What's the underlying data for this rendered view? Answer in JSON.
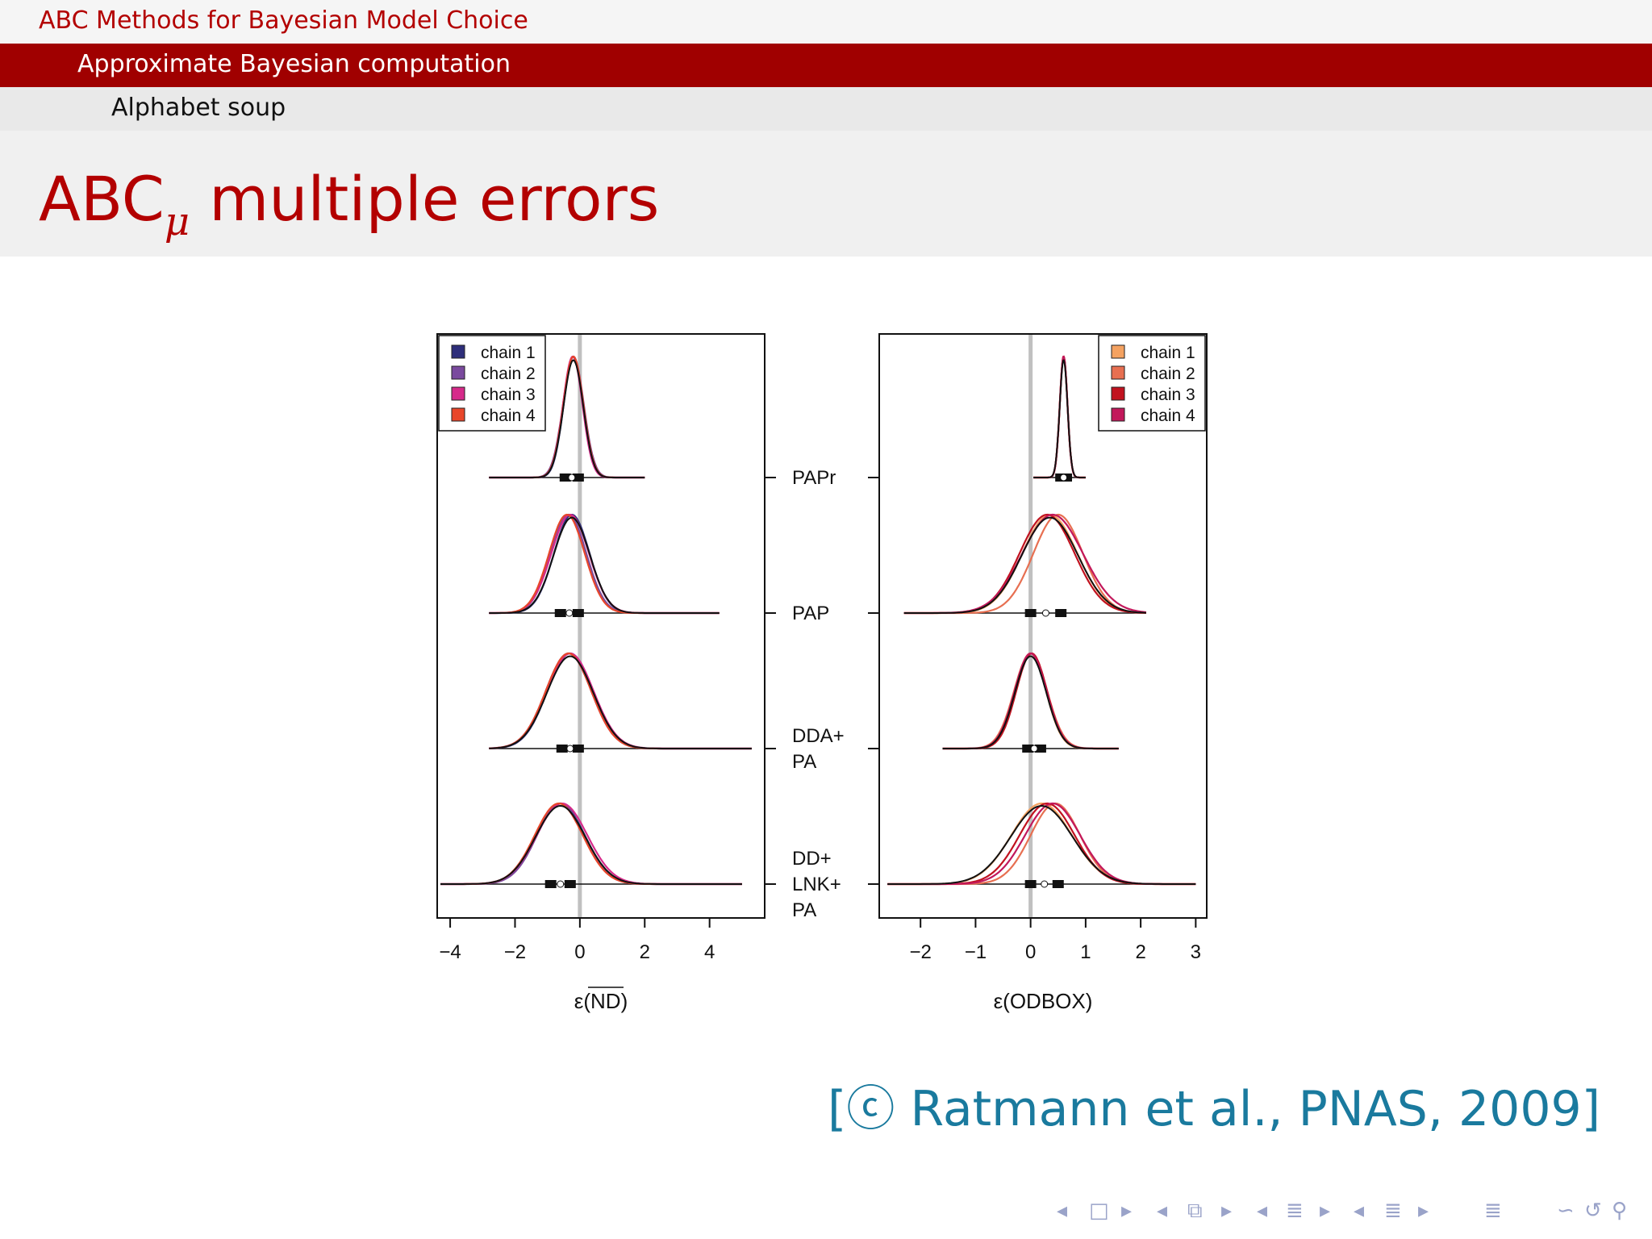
{
  "header": {
    "section": "ABC Methods for Bayesian Model Choice",
    "subsection": "Approximate Bayesian computation",
    "subsubsection": "Alphabet soup"
  },
  "frame": {
    "title_main": "ABC",
    "title_sub": "μ",
    "title_rest": " multiple errors"
  },
  "citation": "[ⓒ Ratmann et al., PNAS, 2009]",
  "nav_symbols": [
    "◂",
    "□",
    "▸",
    "◂",
    "⧉",
    "▸",
    "◂",
    "≣",
    "▸",
    "◂",
    "≣",
    "▸",
    "≣",
    "∽",
    "↺",
    "⚲"
  ],
  "colors": {
    "accent_red": "#a00000",
    "citation_blue": "#1a7a9e",
    "zero_line": "#c0c0c0",
    "left_chains": [
      "#2e2e7a",
      "#7a4a9e",
      "#d62a8a",
      "#e8462a"
    ],
    "right_chains": [
      "#f4a261",
      "#e76f51",
      "#c1121f",
      "#c2185b"
    ]
  },
  "chart_data": [
    {
      "type": "density",
      "panel": "left",
      "xlabel": "ε(ND)",
      "xticks": [
        -4,
        -2,
        0,
        2,
        4
      ],
      "xlim": [
        -4.4,
        5.7
      ],
      "reference_line_x": 0,
      "legend_position": "top-left",
      "legend": [
        "chain 1",
        "chain 2",
        "chain 3",
        "chain 4"
      ],
      "rows": [
        {
          "label": [
            "PAPr"
          ],
          "range": [
            -2.8,
            2.0
          ],
          "interval": [
            -0.45,
            -0.05
          ],
          "density": [
            {
              "mean": -0.2,
              "sd": 0.3
            },
            {
              "mean": -0.2,
              "sd": 0.32
            },
            {
              "mean": -0.22,
              "sd": 0.3
            },
            {
              "mean": -0.2,
              "sd": 0.31
            }
          ]
        },
        {
          "label": [
            "PAP"
          ],
          "range": [
            -2.8,
            4.3
          ],
          "interval": [
            -0.6,
            -0.05
          ],
          "density": [
            {
              "mean": -0.25,
              "sd": 0.55
            },
            {
              "mean": -0.35,
              "sd": 0.55
            },
            {
              "mean": -0.3,
              "sd": 0.58
            },
            {
              "mean": -0.4,
              "sd": 0.55
            }
          ]
        },
        {
          "label": [
            "DDA+",
            "PA"
          ],
          "range": [
            -2.8,
            5.3
          ],
          "interval": [
            -0.55,
            -0.05
          ],
          "density": [
            {
              "mean": -0.3,
              "sd": 0.7
            },
            {
              "mean": -0.35,
              "sd": 0.7
            },
            {
              "mean": -0.3,
              "sd": 0.72
            },
            {
              "mean": -0.35,
              "sd": 0.7
            }
          ]
        },
        {
          "label": [
            "DD+",
            "LNK+",
            "PA"
          ],
          "range": [
            -4.3,
            5.0
          ],
          "interval": [
            -0.9,
            -0.3
          ],
          "density": [
            {
              "mean": -0.6,
              "sd": 0.75
            },
            {
              "mean": -0.6,
              "sd": 0.72
            },
            {
              "mean": -0.55,
              "sd": 0.78
            },
            {
              "mean": -0.65,
              "sd": 0.74
            }
          ]
        }
      ]
    },
    {
      "type": "density",
      "panel": "right",
      "xlabel": "ε(ODBOX)",
      "xticks": [
        -2,
        -1,
        0,
        1,
        2,
        3
      ],
      "xlim": [
        -2.75,
        3.2
      ],
      "reference_line_x": 0,
      "legend_position": "top-right",
      "legend": [
        "chain 1",
        "chain 2",
        "chain 3",
        "chain 4"
      ],
      "rows": [
        {
          "label": [
            "PAPr"
          ],
          "range": [
            0.05,
            1.0
          ],
          "interval": [
            0.55,
            0.65
          ],
          "density": [
            {
              "mean": 0.6,
              "sd": 0.07
            },
            {
              "mean": 0.6,
              "sd": 0.07
            },
            {
              "mean": 0.6,
              "sd": 0.07
            },
            {
              "mean": 0.6,
              "sd": 0.07
            }
          ]
        },
        {
          "label": [
            "PAP"
          ],
          "range": [
            -2.3,
            2.1
          ],
          "interval": [
            0.0,
            0.55
          ],
          "density": [
            {
              "mean": 0.35,
              "sd": 0.5
            },
            {
              "mean": 0.5,
              "sd": 0.45
            },
            {
              "mean": 0.3,
              "sd": 0.5
            },
            {
              "mean": 0.4,
              "sd": 0.55
            }
          ]
        },
        {
          "label": [
            "DDA+",
            "PA"
          ],
          "range": [
            -1.6,
            1.6
          ],
          "interval": [
            -0.05,
            0.18
          ],
          "density": [
            {
              "mean": 0.0,
              "sd": 0.28
            },
            {
              "mean": 0.0,
              "sd": 0.3
            },
            {
              "mean": 0.02,
              "sd": 0.28
            },
            {
              "mean": 0.0,
              "sd": 0.29
            }
          ]
        },
        {
          "label": [
            "DD+",
            "LNK+",
            "PA"
          ],
          "range": [
            -2.6,
            3.0
          ],
          "interval": [
            0.0,
            0.5
          ],
          "density": [
            {
              "mean": 0.2,
              "sd": 0.55
            },
            {
              "mean": 0.45,
              "sd": 0.45
            },
            {
              "mean": 0.3,
              "sd": 0.5
            },
            {
              "mean": 0.4,
              "sd": 0.5
            }
          ]
        }
      ]
    }
  ]
}
